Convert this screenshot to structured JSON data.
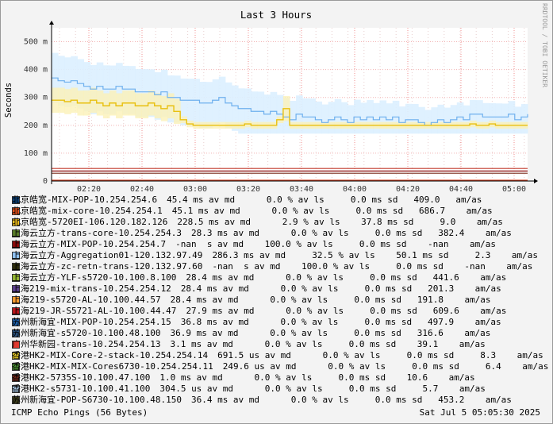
{
  "chart_data": {
    "type": "line",
    "title": "Last 3 Hours",
    "ylabel": "Seconds",
    "watermark": "RRDTOOL / TOBI OETIKER",
    "ylim": [
      0,
      0.55
    ],
    "yticks": [
      {
        "v": 0,
        "label": "0"
      },
      {
        "v": 0.1,
        "label": "100 m"
      },
      {
        "v": 0.2,
        "label": "200 m"
      },
      {
        "v": 0.3,
        "label": "300 m"
      },
      {
        "v": 0.4,
        "label": "400 m"
      },
      {
        "v": 0.5,
        "label": "500 m"
      }
    ],
    "xticks": [
      "02:20",
      "02:40",
      "03:00",
      "03:20",
      "03:40",
      "04:00",
      "04:20",
      "04:40",
      "05:00"
    ],
    "xlim": [
      "02:05",
      "05:06"
    ],
    "series": [
      {
        "name": "北京皓宽-MIX-POP-10.254.254.6",
        "color": "#0b3f75",
        "stats": "45.4 ms av md      0.0 % av ls     0.0 ms sd   409.0   am/as",
        "values_level": 0.0454
      },
      {
        "name": "北京皓宽-mix-core-10.254.254.1",
        "color": "#e8531c",
        "stats": "45.1 ms av md      0.0 % av ls     0.0 ms sd   686.7    am/as",
        "values_level": 0.0451
      },
      {
        "name": "北京皓宽-5720EI-106.120.182.126",
        "color": "#f3c01c",
        "stats": "228.5 ms av md      2.9 % av ls    37.8 ms sd     9.0    am/as",
        "values_level": 0.2285
      },
      {
        "name": "上海云立方-trans-core-10.254.254.3",
        "color": "#567a27",
        "stats": "28.3 ms av md      0.0 % av ls     0.0 ms sd   382.4    am/as",
        "values_level": 0.0283
      },
      {
        "name": "上海云立方-MIX-POP-10.254.254.7",
        "color": "#8a0a0a",
        "stats": "-nan  s av md    100.0 % av ls     0.0 ms sd    -nan    am/as",
        "values_level": null
      },
      {
        "name": "上海云立方-Aggregation01-120.132.97.49",
        "color": "#8fc1f2",
        "stats": "286.3 ms av md     32.5 % av ls    50.1 ms sd     2.3    am/as",
        "values_level": 0.2863
      },
      {
        "name": "上海云立方-zc-retn-trans-120.132.97.60",
        "color": "#2c2c0c",
        "stats": "-nan  s av md    100.0 % av ls     0.0 ms sd    -nan    am/as",
        "values_level": null
      },
      {
        "name": "上海云立方-YLF-s5720-10.100.8.100",
        "color": "#93b531",
        "stats": "28.4 ms av md      0.0 % av ls     0.0 ms sd   441.6    am/as",
        "values_level": 0.0284
      },
      {
        "name": "上海219-mix-trans-10.254.254.12",
        "color": "#5a3e8a",
        "stats": "28.4 ms av md      0.0 % av ls     0.0 ms sd   201.3    am/as",
        "values_level": 0.0284
      },
      {
        "name": "上海219-s5720-AL-10.100.44.57",
        "color": "#f59a2d",
        "stats": "28.4 ms av md      0.0 % av ls     0.0 ms sd   191.8    am/as",
        "values_level": 0.0284
      },
      {
        "name": "上海219-JR-S5721-AL-10.100.44.47",
        "color": "#b8151a",
        "stats": "27.9 ms av md      0.0 % av ls     0.0 ms sd   609.6    am/as",
        "values_level": 0.0279
      },
      {
        "name": "苏州新海宜-MIX-POP-10.254.254.15",
        "color": "#1e5fa8",
        "stats": "36.8 ms av md      0.0 % av ls     0.0 ms sd   497.9    am/as",
        "values_level": 0.0368
      },
      {
        "name": "苏州新海宜-s5720-10.100.48.100",
        "color": "#2a4f7a",
        "stats": "36.9 ms av md      0.0 % av ls     0.0 ms sd   316.6    am/as",
        "values_level": 0.0369
      },
      {
        "name": "广州华新园-trans-10.254.254.13",
        "color": "#e03a30",
        "stats": "3.1 ms av md      0.0 % av ls     0.0 ms sd    39.1    am/as",
        "values_level": 0.0031
      },
      {
        "name": "香港HK2-MIX-Core-2-stack-10.254.254.14",
        "color": "#f7d82a",
        "stats": "691.5 us av md      0.0 % av ls     0.0 ms sd     8.3    am/as",
        "values_level": 0.0007
      },
      {
        "name": "香港HK2-MIX-MIX-Cores6730-10.254.254.11",
        "color": "#4e9a35",
        "stats": "249.6 us av md      0.0 % av ls     0.0 ms sd     6.4    am/as",
        "values_level": 0.00025
      },
      {
        "name": "香港HK2-5735S-10.100.47.100",
        "color": "#7a2a1a",
        "stats": "1.0 ms av md      0.0 % av ls     0.0 ms sd    10.6    am/as",
        "values_level": 0.001
      },
      {
        "name": "香港HK2-s5731-10.100.41.100",
        "color": "#b6d6f5",
        "stats": "304.5 us av md      0.0 % av ls     0.0 ms sd     5.7    am/as",
        "values_level": 0.0003
      },
      {
        "name": "苏州新海宜-POP-S6730-10.100.48.150",
        "color": "#3a3a1a",
        "stats": "36.4 ms av md      0.0 % av ls     0.0 ms sd   453.2    am/as",
        "values_level": 0.0364
      }
    ],
    "blue_trace": [
      [
        0,
        0.37
      ],
      [
        10,
        0.36
      ],
      [
        20,
        0.355
      ],
      [
        30,
        0.36
      ],
      [
        40,
        0.35
      ],
      [
        50,
        0.34
      ],
      [
        60,
        0.33
      ],
      [
        70,
        0.34
      ],
      [
        80,
        0.33
      ],
      [
        90,
        0.33
      ],
      [
        100,
        0.34
      ],
      [
        110,
        0.33
      ],
      [
        120,
        0.33
      ],
      [
        130,
        0.32
      ],
      [
        140,
        0.32
      ],
      [
        150,
        0.32
      ],
      [
        160,
        0.31
      ],
      [
        170,
        0.32
      ],
      [
        180,
        0.3
      ],
      [
        190,
        0.3
      ],
      [
        200,
        0.29
      ],
      [
        210,
        0.29
      ],
      [
        220,
        0.29
      ],
      [
        230,
        0.28
      ],
      [
        240,
        0.28
      ],
      [
        250,
        0.29
      ],
      [
        260,
        0.3
      ],
      [
        270,
        0.28
      ],
      [
        280,
        0.27
      ],
      [
        290,
        0.26
      ],
      [
        300,
        0.26
      ],
      [
        310,
        0.25
      ],
      [
        320,
        0.25
      ],
      [
        330,
        0.24
      ],
      [
        340,
        0.25
      ],
      [
        350,
        0.24
      ],
      [
        360,
        0.23
      ],
      [
        370,
        0.22
      ],
      [
        380,
        0.24
      ],
      [
        390,
        0.23
      ],
      [
        400,
        0.23
      ],
      [
        410,
        0.22
      ],
      [
        420,
        0.21
      ],
      [
        430,
        0.22
      ],
      [
        440,
        0.23
      ],
      [
        450,
        0.22
      ],
      [
        460,
        0.21
      ],
      [
        470,
        0.23
      ],
      [
        480,
        0.22
      ],
      [
        490,
        0.23
      ],
      [
        500,
        0.22
      ],
      [
        510,
        0.23
      ],
      [
        520,
        0.22
      ],
      [
        530,
        0.23
      ],
      [
        540,
        0.21
      ],
      [
        550,
        0.22
      ],
      [
        560,
        0.22
      ],
      [
        570,
        0.21
      ],
      [
        580,
        0.2
      ],
      [
        590,
        0.21
      ],
      [
        600,
        0.22
      ],
      [
        610,
        0.21
      ],
      [
        620,
        0.22
      ],
      [
        630,
        0.23
      ],
      [
        640,
        0.22
      ],
      [
        650,
        0.24
      ],
      [
        660,
        0.24
      ],
      [
        670,
        0.23
      ],
      [
        680,
        0.23
      ],
      [
        690,
        0.23
      ],
      [
        700,
        0.23
      ],
      [
        710,
        0.24
      ],
      [
        720,
        0.22
      ],
      [
        730,
        0.23
      ],
      [
        740,
        0.24
      ]
    ],
    "yellow_trace": [
      [
        0,
        0.29
      ],
      [
        10,
        0.29
      ],
      [
        20,
        0.285
      ],
      [
        30,
        0.29
      ],
      [
        40,
        0.28
      ],
      [
        50,
        0.28
      ],
      [
        60,
        0.29
      ],
      [
        70,
        0.28
      ],
      [
        80,
        0.27
      ],
      [
        90,
        0.28
      ],
      [
        100,
        0.27
      ],
      [
        110,
        0.28
      ],
      [
        120,
        0.28
      ],
      [
        130,
        0.27
      ],
      [
        140,
        0.27
      ],
      [
        150,
        0.28
      ],
      [
        160,
        0.27
      ],
      [
        170,
        0.26
      ],
      [
        180,
        0.27
      ],
      [
        190,
        0.25
      ],
      [
        200,
        0.22
      ],
      [
        210,
        0.205
      ],
      [
        220,
        0.2
      ],
      [
        230,
        0.2
      ],
      [
        240,
        0.2
      ],
      [
        250,
        0.2
      ],
      [
        260,
        0.2
      ],
      [
        270,
        0.2
      ],
      [
        280,
        0.2
      ],
      [
        290,
        0.2
      ],
      [
        300,
        0.205
      ],
      [
        310,
        0.2
      ],
      [
        320,
        0.2
      ],
      [
        330,
        0.2
      ],
      [
        340,
        0.2
      ],
      [
        350,
        0.22
      ],
      [
        360,
        0.26
      ],
      [
        370,
        0.2
      ],
      [
        380,
        0.2
      ],
      [
        390,
        0.2
      ],
      [
        400,
        0.2
      ],
      [
        410,
        0.2
      ],
      [
        420,
        0.2
      ],
      [
        430,
        0.2
      ],
      [
        440,
        0.2
      ],
      [
        450,
        0.2
      ],
      [
        460,
        0.2
      ],
      [
        470,
        0.2
      ],
      [
        480,
        0.2
      ],
      [
        490,
        0.2
      ],
      [
        500,
        0.2
      ],
      [
        510,
        0.2
      ],
      [
        520,
        0.2
      ],
      [
        530,
        0.2
      ],
      [
        540,
        0.2
      ],
      [
        550,
        0.2
      ],
      [
        560,
        0.2
      ],
      [
        570,
        0.2
      ],
      [
        580,
        0.2
      ],
      [
        590,
        0.2
      ],
      [
        600,
        0.2
      ],
      [
        610,
        0.2
      ],
      [
        620,
        0.2
      ],
      [
        630,
        0.2
      ],
      [
        640,
        0.2
      ],
      [
        650,
        0.205
      ],
      [
        660,
        0.2
      ],
      [
        670,
        0.2
      ],
      [
        680,
        0.205
      ],
      [
        690,
        0.2
      ],
      [
        700,
        0.2
      ],
      [
        710,
        0.2
      ],
      [
        720,
        0.2
      ],
      [
        730,
        0.2
      ],
      [
        740,
        0.2
      ]
    ],
    "flat_lines": [
      {
        "level": 0.045,
        "color": "#c0392b"
      },
      {
        "level": 0.036,
        "color": "#8a0a0a"
      },
      {
        "level": 0.028,
        "color": "#7a2a1a"
      },
      {
        "level": 0.003,
        "color": "#d04020"
      }
    ]
  },
  "footer": {
    "left": "ICMP Echo Pings (56 Bytes)",
    "right": "Sat Jul  5 05:05:30 2025"
  }
}
